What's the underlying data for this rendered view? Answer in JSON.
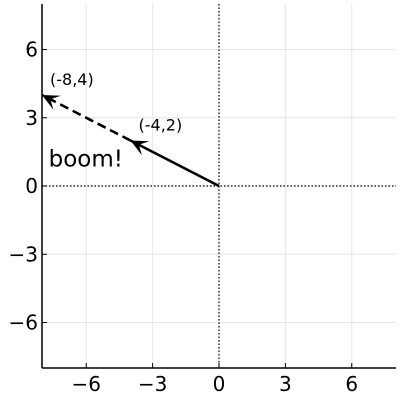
{
  "chart_data": {
    "type": "line",
    "title": "",
    "xlabel": "",
    "ylabel": "",
    "xlim": [
      -8,
      8
    ],
    "ylim": [
      -8,
      8
    ],
    "xticks": [
      -6,
      -3,
      0,
      3,
      6
    ],
    "yticks": [
      -6,
      -3,
      0,
      3,
      6
    ],
    "xtick_labels": [
      "−6",
      "−3",
      "0",
      "3",
      "6"
    ],
    "ytick_labels": [
      "−6",
      "−3",
      "0",
      "3",
      "6"
    ],
    "grid": true,
    "reference_lines": {
      "x": 0,
      "y": 0,
      "style": "dotted"
    },
    "series": [
      {
        "from": [
          0,
          0
        ],
        "to": [
          -4,
          2
        ],
        "style": "solid",
        "color": "#000000"
      },
      {
        "from": [
          -4,
          2
        ],
        "to": [
          -8,
          4
        ],
        "style": "dashed",
        "color": "#000000"
      }
    ],
    "point_labels": [
      {
        "text": "(-4,2)",
        "x": -4,
        "y": 2
      },
      {
        "text": "(-8,4)",
        "x": -8,
        "y": 4
      }
    ],
    "annotations": [
      {
        "text": "boom!",
        "x": -7.7,
        "y": 1.2
      }
    ]
  }
}
